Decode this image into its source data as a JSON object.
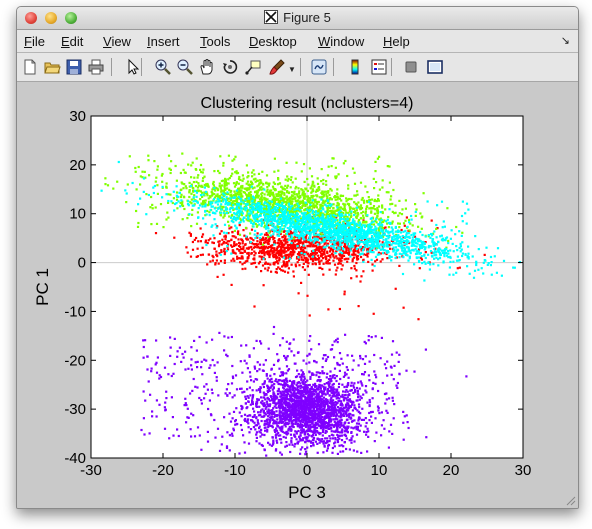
{
  "window": {
    "title": "Figure 5"
  },
  "menu": {
    "items": [
      {
        "key": "file",
        "label": "File",
        "u": "F",
        "rest": "ile"
      },
      {
        "key": "edit",
        "label": "Edit",
        "u": "E",
        "rest": "dit"
      },
      {
        "key": "view",
        "label": "View",
        "u": "V",
        "rest": "iew"
      },
      {
        "key": "insert",
        "label": "Insert",
        "u": "I",
        "rest": "nsert"
      },
      {
        "key": "tools",
        "label": "Tools",
        "u": "T",
        "rest": "ools"
      },
      {
        "key": "desktop",
        "label": "Desktop",
        "u": "D",
        "rest": "esktop"
      },
      {
        "key": "window",
        "label": "Window",
        "u": "W",
        "rest": "indow"
      },
      {
        "key": "help",
        "label": "Help",
        "u": "H",
        "rest": "elp"
      }
    ],
    "dock_icon": "dock-arrow-icon"
  },
  "toolbar": {
    "icons": [
      "new-figure-icon",
      "open-file-icon",
      "save-icon",
      "print-icon",
      "select-arrow-icon",
      "zoom-in-icon",
      "zoom-out-icon",
      "pan-hand-icon",
      "rotate-3d-icon",
      "data-cursor-icon",
      "brush-icon",
      "link-plot-icon",
      "colorbar-icon",
      "legend-icon",
      "hide-plot-tools-icon",
      "show-plot-tools-icon"
    ]
  },
  "colors": {
    "figure_bg": "#c9c9c9",
    "axes_bg": "#ffffff",
    "purple": "#7f00ff",
    "red": "#ff0000",
    "cyan": "#00ffff",
    "green": "#80ff00"
  },
  "chart_data": {
    "type": "scatter",
    "title": "Clustering result (nclusters=4)",
    "xlabel": "PC 3",
    "ylabel": "PC 1",
    "xlim": [
      -30,
      30
    ],
    "ylim": [
      -40,
      30
    ],
    "xticks": [
      -30,
      -20,
      -10,
      0,
      10,
      20,
      30
    ],
    "yticks": [
      -40,
      -30,
      -20,
      -10,
      0,
      10,
      20,
      30
    ],
    "crosshair_at_origin": true,
    "grid": false,
    "legend": "none",
    "marker": "dot",
    "series": [
      {
        "color": "#7f00ff",
        "n": 2200,
        "center": [
          0,
          -30
        ],
        "spread": [
          3.5,
          3.5
        ],
        "core_share": 0.78,
        "halo": {
          "xrange": [
            -23,
            13
          ],
          "yrange": [
            -37,
            -15
          ],
          "n": 320
        }
      },
      {
        "color": "#ff0000",
        "n": 1100,
        "center": [
          -1,
          3
        ],
        "spread": [
          6.5,
          2.2
        ],
        "halo": {
          "xrange": [
            -12,
            18
          ],
          "yrange": [
            -12,
            9
          ],
          "n": 40
        }
      },
      {
        "color": "#80ff00",
        "n": 1500,
        "center": [
          -3,
          12
        ],
        "spread": [
          8,
          2.5
        ],
        "tilt": -0.2,
        "halo": {
          "xrange": [
            -24,
            12
          ],
          "yrange": [
            7,
            22
          ],
          "n": 180
        }
      },
      {
        "color": "#00ffff",
        "n": 1700,
        "center": [
          3,
          7
        ],
        "spread": [
          9.5,
          1.8
        ],
        "tilt": -0.3,
        "halo": {
          "xrange": [
            -15,
            24
          ],
          "yrange": [
            0,
            13
          ],
          "n": 120
        }
      }
    ]
  }
}
